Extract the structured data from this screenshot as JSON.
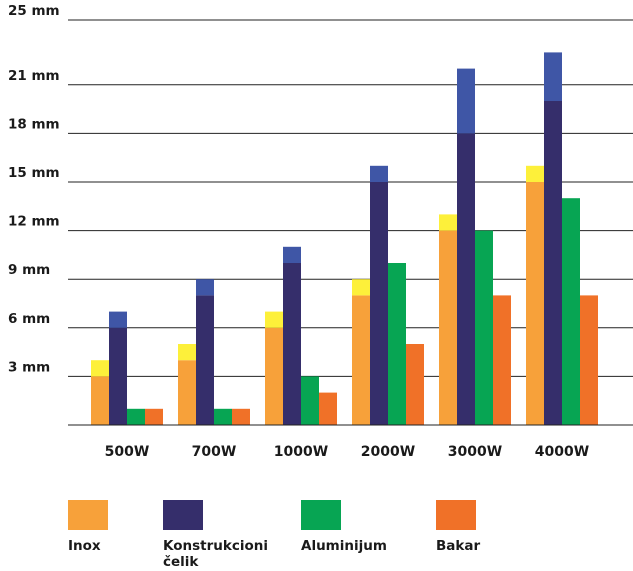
{
  "chart_data": {
    "type": "bar",
    "stacked_segments": true,
    "categories": [
      "500W",
      "700W",
      "1000W",
      "2000W",
      "3000W",
      "4000W"
    ],
    "y_ticks": [
      "3 mm",
      "6 mm",
      "9 mm",
      "12 mm",
      "15 mm",
      "18 mm",
      "21 mm",
      "25 mm"
    ],
    "ylim": [
      0,
      25
    ],
    "grid": true,
    "legend_position": "bottom",
    "series": [
      {
        "name": "Inox",
        "color": "#f7a13a",
        "extra_color": "#fdf03a",
        "values": [
          3,
          4,
          6,
          8,
          12,
          15
        ],
        "extra": [
          1,
          1,
          1,
          1,
          1,
          1
        ]
      },
      {
        "name": "Konstrukcioni čelik",
        "color": "#352e6b",
        "extra_color": "#3f56a6",
        "values": [
          6,
          8,
          10,
          15,
          18,
          20
        ],
        "extra": [
          1,
          1,
          1,
          1,
          4,
          3
        ]
      },
      {
        "name": "Aluminijum",
        "color": "#07a553",
        "extra_color": "",
        "values": [
          1,
          1,
          3,
          10,
          12,
          14
        ],
        "extra": [
          0,
          0,
          0,
          0,
          0,
          0
        ]
      },
      {
        "name": "Bakar",
        "color": "#f07128",
        "extra_color": "",
        "values": [
          1,
          1,
          2,
          5,
          8,
          8
        ],
        "extra": [
          0,
          0,
          0,
          0,
          0,
          0
        ]
      }
    ]
  }
}
